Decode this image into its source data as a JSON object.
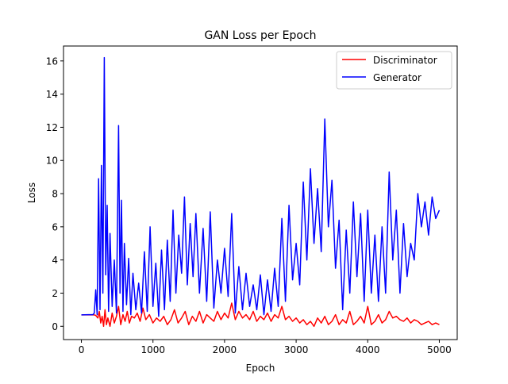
{
  "chart_data": {
    "type": "line",
    "title": "GAN Loss per Epoch",
    "xlabel": "Epoch",
    "ylabel": "Loss",
    "xlim": [
      -250,
      5250
    ],
    "ylim": [
      -0.8,
      16.9
    ],
    "xticks": [
      0,
      1000,
      2000,
      3000,
      4000,
      5000
    ],
    "yticks": [
      0,
      2,
      4,
      6,
      8,
      10,
      12,
      14,
      16
    ],
    "grid": false,
    "legend_position": "top-right",
    "series": [
      {
        "name": "Discriminator",
        "color": "#ff0000",
        "x": [
          0,
          100,
          180,
          200,
          230,
          250,
          270,
          290,
          310,
          330,
          350,
          370,
          400,
          430,
          460,
          490,
          520,
          550,
          580,
          610,
          640,
          670,
          700,
          740,
          780,
          820,
          860,
          900,
          950,
          1000,
          1050,
          1100,
          1150,
          1200,
          1250,
          1300,
          1350,
          1400,
          1450,
          1500,
          1550,
          1600,
          1650,
          1700,
          1750,
          1800,
          1850,
          1900,
          1950,
          2000,
          2050,
          2100,
          2150,
          2200,
          2250,
          2300,
          2350,
          2400,
          2450,
          2500,
          2550,
          2600,
          2650,
          2700,
          2750,
          2800,
          2850,
          2900,
          2950,
          3000,
          3050,
          3100,
          3150,
          3200,
          3250,
          3300,
          3350,
          3400,
          3450,
          3500,
          3550,
          3600,
          3650,
          3700,
          3750,
          3800,
          3850,
          3900,
          3950,
          4000,
          4050,
          4100,
          4150,
          4200,
          4250,
          4300,
          4350,
          4400,
          4450,
          4500,
          4550,
          4600,
          4650,
          4700,
          4750,
          4800,
          4850,
          4900,
          4950,
          5000
        ],
        "y": [
          0.69,
          0.69,
          0.69,
          0.66,
          0.5,
          0.9,
          0.2,
          0.6,
          0.0,
          1.0,
          0.1,
          0.5,
          0.0,
          0.8,
          0.2,
          0.6,
          1.2,
          0.1,
          0.7,
          0.3,
          0.9,
          0.2,
          0.6,
          0.5,
          0.8,
          0.3,
          1.1,
          0.4,
          0.7,
          0.2,
          0.5,
          0.3,
          0.6,
          0.1,
          0.4,
          1.0,
          0.2,
          0.5,
          0.9,
          0.1,
          0.6,
          0.3,
          0.9,
          0.2,
          0.7,
          0.5,
          0.3,
          0.9,
          0.4,
          0.8,
          0.5,
          1.4,
          0.4,
          0.9,
          0.5,
          0.7,
          0.4,
          0.9,
          0.3,
          0.6,
          0.4,
          0.8,
          0.3,
          0.7,
          0.5,
          1.2,
          0.4,
          0.6,
          0.3,
          0.5,
          0.2,
          0.4,
          0.1,
          0.3,
          0.0,
          0.5,
          0.2,
          0.6,
          0.1,
          0.3,
          0.7,
          0.1,
          0.4,
          0.2,
          0.9,
          0.1,
          0.3,
          0.6,
          0.2,
          1.2,
          0.1,
          0.3,
          0.7,
          0.2,
          0.4,
          0.9,
          0.5,
          0.6,
          0.4,
          0.3,
          0.5,
          0.2,
          0.4,
          0.3,
          0.1,
          0.2,
          0.3,
          0.1,
          0.2,
          0.1
        ]
      },
      {
        "name": "Generator",
        "color": "#0000ff",
        "x": [
          0,
          100,
          160,
          180,
          200,
          220,
          240,
          260,
          280,
          300,
          320,
          340,
          360,
          380,
          400,
          430,
          460,
          490,
          520,
          540,
          560,
          580,
          600,
          630,
          660,
          690,
          720,
          760,
          800,
          840,
          880,
          920,
          960,
          1000,
          1040,
          1080,
          1120,
          1160,
          1200,
          1240,
          1280,
          1320,
          1360,
          1400,
          1440,
          1480,
          1520,
          1560,
          1600,
          1650,
          1700,
          1750,
          1800,
          1850,
          1900,
          1950,
          2000,
          2050,
          2100,
          2150,
          2200,
          2250,
          2300,
          2350,
          2400,
          2450,
          2500,
          2550,
          2600,
          2650,
          2700,
          2750,
          2800,
          2850,
          2900,
          2950,
          3000,
          3050,
          3100,
          3150,
          3200,
          3250,
          3300,
          3350,
          3400,
          3450,
          3500,
          3550,
          3600,
          3650,
          3700,
          3750,
          3800,
          3850,
          3900,
          3950,
          4000,
          4050,
          4100,
          4150,
          4200,
          4250,
          4300,
          4350,
          4400,
          4450,
          4500,
          4550,
          4600,
          4650,
          4700,
          4750,
          4800,
          4850,
          4900,
          4950,
          5000
        ],
        "y": [
          0.69,
          0.7,
          0.7,
          0.8,
          2.2,
          0.7,
          8.9,
          1.0,
          9.7,
          2.0,
          16.2,
          3.1,
          7.3,
          0.9,
          5.6,
          1.2,
          4.0,
          0.8,
          12.1,
          2.0,
          7.6,
          0.9,
          5.0,
          1.3,
          4.1,
          0.7,
          3.2,
          1.0,
          2.6,
          0.8,
          4.5,
          0.9,
          6.0,
          1.2,
          3.8,
          0.6,
          4.6,
          1.0,
          5.2,
          1.5,
          7.0,
          2.0,
          5.5,
          3.2,
          7.8,
          2.5,
          6.2,
          3.0,
          6.8,
          2.0,
          5.9,
          1.5,
          6.9,
          1.1,
          4.0,
          2.0,
          4.7,
          1.8,
          6.8,
          0.8,
          3.6,
          1.0,
          3.2,
          1.2,
          2.5,
          1.0,
          3.1,
          0.7,
          2.8,
          0.9,
          3.5,
          1.2,
          6.5,
          1.5,
          7.3,
          2.8,
          5.0,
          2.5,
          8.7,
          4.0,
          9.5,
          5.0,
          8.3,
          4.5,
          12.5,
          6.0,
          8.8,
          3.5,
          6.4,
          1.0,
          5.8,
          2.0,
          7.5,
          3.0,
          6.8,
          1.5,
          7.0,
          2.0,
          5.5,
          1.5,
          6.0,
          2.0,
          9.3,
          4.0,
          7.0,
          2.0,
          6.2,
          3.0,
          5.0,
          4.0,
          8.0,
          6.0,
          7.5,
          5.5,
          7.8,
          6.5,
          7.0
        ]
      }
    ]
  }
}
